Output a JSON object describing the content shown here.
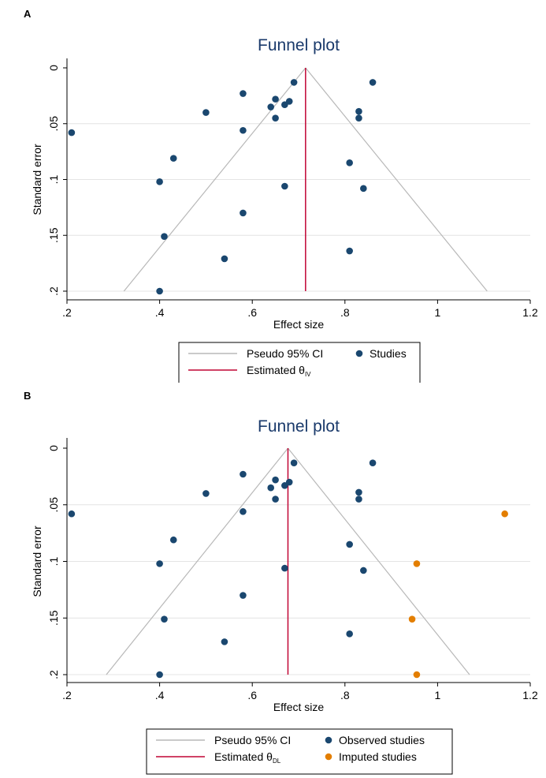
{
  "panels": [
    {
      "letter": "A",
      "chart_data": {
        "type": "scatter",
        "title": "Funnel plot",
        "xlabel": "Effect size",
        "ylabel": "Standard error",
        "xlim": [
          0.2,
          1.2
        ],
        "ylim": [
          0,
          0.2
        ],
        "y_reversed": true,
        "x_ticks": [
          0.2,
          0.4,
          0.6,
          0.8,
          1.0,
          1.2
        ],
        "x_tick_labels": [
          ".2",
          ".4",
          ".6",
          ".8",
          "1",
          "1.2"
        ],
        "y_ticks": [
          0,
          0.05,
          0.1,
          0.15,
          0.2
        ],
        "y_tick_labels": [
          "0",
          ".05",
          ".1",
          ".15",
          ".2"
        ],
        "grid": "horizontal",
        "estimate": 0.715,
        "ci_funnel": {
          "center": 0.715,
          "se_max": 0.2
        },
        "series": [
          {
            "name": "Studies",
            "color": "#1a476f",
            "points": [
              {
                "x": 0.21,
                "y": 0.058
              },
              {
                "x": 0.4,
                "y": 0.102
              },
              {
                "x": 0.4,
                "y": 0.2
              },
              {
                "x": 0.41,
                "y": 0.151
              },
              {
                "x": 0.43,
                "y": 0.081
              },
              {
                "x": 0.5,
                "y": 0.04
              },
              {
                "x": 0.54,
                "y": 0.171
              },
              {
                "x": 0.58,
                "y": 0.023
              },
              {
                "x": 0.58,
                "y": 0.056
              },
              {
                "x": 0.58,
                "y": 0.13
              },
              {
                "x": 0.64,
                "y": 0.035
              },
              {
                "x": 0.65,
                "y": 0.028
              },
              {
                "x": 0.65,
                "y": 0.045
              },
              {
                "x": 0.67,
                "y": 0.033
              },
              {
                "x": 0.67,
                "y": 0.106
              },
              {
                "x": 0.68,
                "y": 0.03
              },
              {
                "x": 0.69,
                "y": 0.013
              },
              {
                "x": 0.81,
                "y": 0.085
              },
              {
                "x": 0.81,
                "y": 0.164
              },
              {
                "x": 0.83,
                "y": 0.039
              },
              {
                "x": 0.83,
                "y": 0.045
              },
              {
                "x": 0.84,
                "y": 0.108
              },
              {
                "x": 0.86,
                "y": 0.013
              }
            ]
          }
        ],
        "legend": {
          "position": "bottom",
          "items": [
            {
              "kind": "line",
              "color": "#b8b8b8",
              "label": "Pseudo 95% CI"
            },
            {
              "kind": "dot",
              "color": "#1a476f",
              "label": "Studies"
            },
            {
              "kind": "line",
              "color": "#c10534",
              "label": "Estimated θ",
              "sub": "IV"
            }
          ]
        }
      }
    },
    {
      "letter": "B",
      "chart_data": {
        "type": "scatter",
        "title": "Funnel plot",
        "xlabel": "Effect size",
        "ylabel": "Standard error",
        "xlim": [
          0.2,
          1.2
        ],
        "ylim": [
          0,
          0.2
        ],
        "y_reversed": true,
        "x_ticks": [
          0.2,
          0.4,
          0.6,
          0.8,
          1.0,
          1.2
        ],
        "x_tick_labels": [
          ".2",
          ".4",
          ".6",
          ".8",
          "1",
          "1.2"
        ],
        "y_ticks": [
          0,
          0.05,
          0.1,
          0.15,
          0.2
        ],
        "y_tick_labels": [
          "0",
          ".05",
          ".1",
          ".15",
          ".2"
        ],
        "grid": "horizontal",
        "estimate": 0.677,
        "ci_funnel": {
          "center": 0.677,
          "se_max": 0.2
        },
        "series": [
          {
            "name": "Observed studies",
            "color": "#1a476f",
            "points": [
              {
                "x": 0.21,
                "y": 0.058
              },
              {
                "x": 0.4,
                "y": 0.102
              },
              {
                "x": 0.4,
                "y": 0.2
              },
              {
                "x": 0.41,
                "y": 0.151
              },
              {
                "x": 0.43,
                "y": 0.081
              },
              {
                "x": 0.5,
                "y": 0.04
              },
              {
                "x": 0.54,
                "y": 0.171
              },
              {
                "x": 0.58,
                "y": 0.023
              },
              {
                "x": 0.58,
                "y": 0.056
              },
              {
                "x": 0.58,
                "y": 0.13
              },
              {
                "x": 0.64,
                "y": 0.035
              },
              {
                "x": 0.65,
                "y": 0.028
              },
              {
                "x": 0.65,
                "y": 0.045
              },
              {
                "x": 0.67,
                "y": 0.033
              },
              {
                "x": 0.67,
                "y": 0.106
              },
              {
                "x": 0.68,
                "y": 0.03
              },
              {
                "x": 0.69,
                "y": 0.013
              },
              {
                "x": 0.81,
                "y": 0.085
              },
              {
                "x": 0.81,
                "y": 0.164
              },
              {
                "x": 0.83,
                "y": 0.039
              },
              {
                "x": 0.83,
                "y": 0.045
              },
              {
                "x": 0.84,
                "y": 0.108
              },
              {
                "x": 0.86,
                "y": 0.013
              }
            ]
          },
          {
            "name": "Imputed studies",
            "color": "#e37e00",
            "points": [
              {
                "x": 1.145,
                "y": 0.058
              },
              {
                "x": 0.955,
                "y": 0.102
              },
              {
                "x": 0.945,
                "y": 0.151
              },
              {
                "x": 0.955,
                "y": 0.2
              }
            ]
          }
        ],
        "legend": {
          "position": "bottom",
          "items": [
            {
              "kind": "line",
              "color": "#b8b8b8",
              "label": "Pseudo 95% CI"
            },
            {
              "kind": "dot",
              "color": "#1a476f",
              "label": "Observed studies"
            },
            {
              "kind": "line",
              "color": "#c10534",
              "label": "Estimated θ",
              "sub": "DL"
            },
            {
              "kind": "dot",
              "color": "#e37e00",
              "label": "Imputed studies"
            }
          ]
        }
      }
    }
  ]
}
